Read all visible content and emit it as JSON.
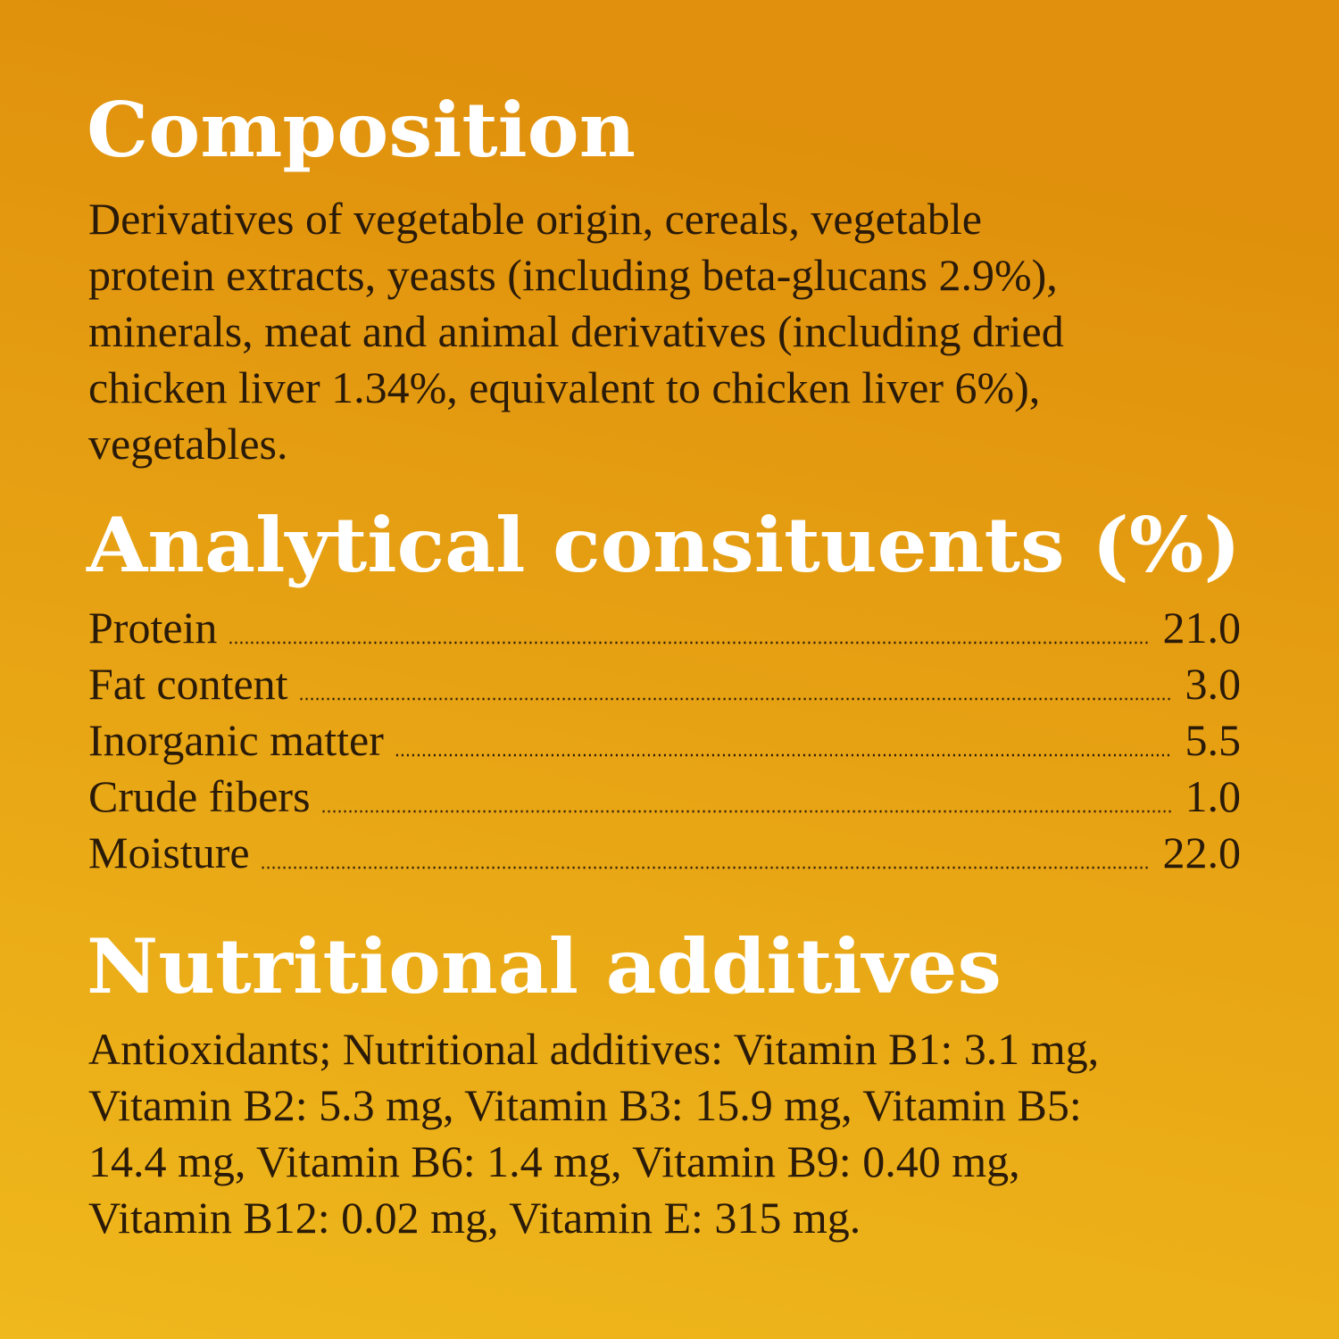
{
  "composition": {
    "title": "Composition",
    "lines": [
      "Derivatives of vegetable origin, cereals, vegetable",
      "protein extracts, yeasts (including beta-glucans 2.9%),",
      "minerals, meat and animal derivatives (including dried",
      "chicken liver 1.34%, equivalent to chicken liver 6%),",
      "vegetables."
    ]
  },
  "analytical": {
    "title": "Analytical consituents (%)",
    "rows": [
      [
        "Protein",
        "21.0"
      ],
      [
        "Fat content",
        "3.0"
      ],
      [
        "Inorganic matter",
        "5.5"
      ],
      [
        "Crude fibers",
        "1.0"
      ],
      [
        "Moisture",
        "22.0"
      ]
    ]
  },
  "additives": {
    "title": "Nutritional additives",
    "lines": [
      "Antioxidants; Nutritional additives: Vitamin B1: 3.1 mg,",
      "Vitamin B2: 5.3 mg, Vitamin B3: 15.9 mg, Vitamin B5:",
      "14.4 mg, Vitamin B6: 1.4 mg, Vitamin B9: 0.40 mg,",
      "Vitamin B12: 0.02 mg, Vitamin E: 315 mg."
    ]
  }
}
